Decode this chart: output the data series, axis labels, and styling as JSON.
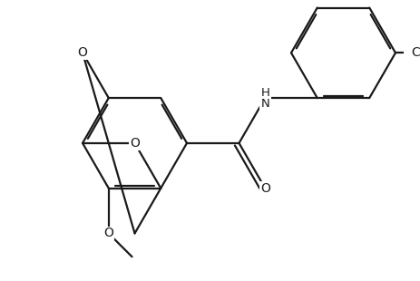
{
  "bg_color": "#ffffff",
  "line_color": "#1a1a1a",
  "line_width": 1.6,
  "dbo": 0.012,
  "figsize": [
    4.64,
    3.1
  ],
  "dpi": 100,
  "xlim": [
    0,
    4.64
  ],
  "ylim": [
    0,
    3.1
  ]
}
